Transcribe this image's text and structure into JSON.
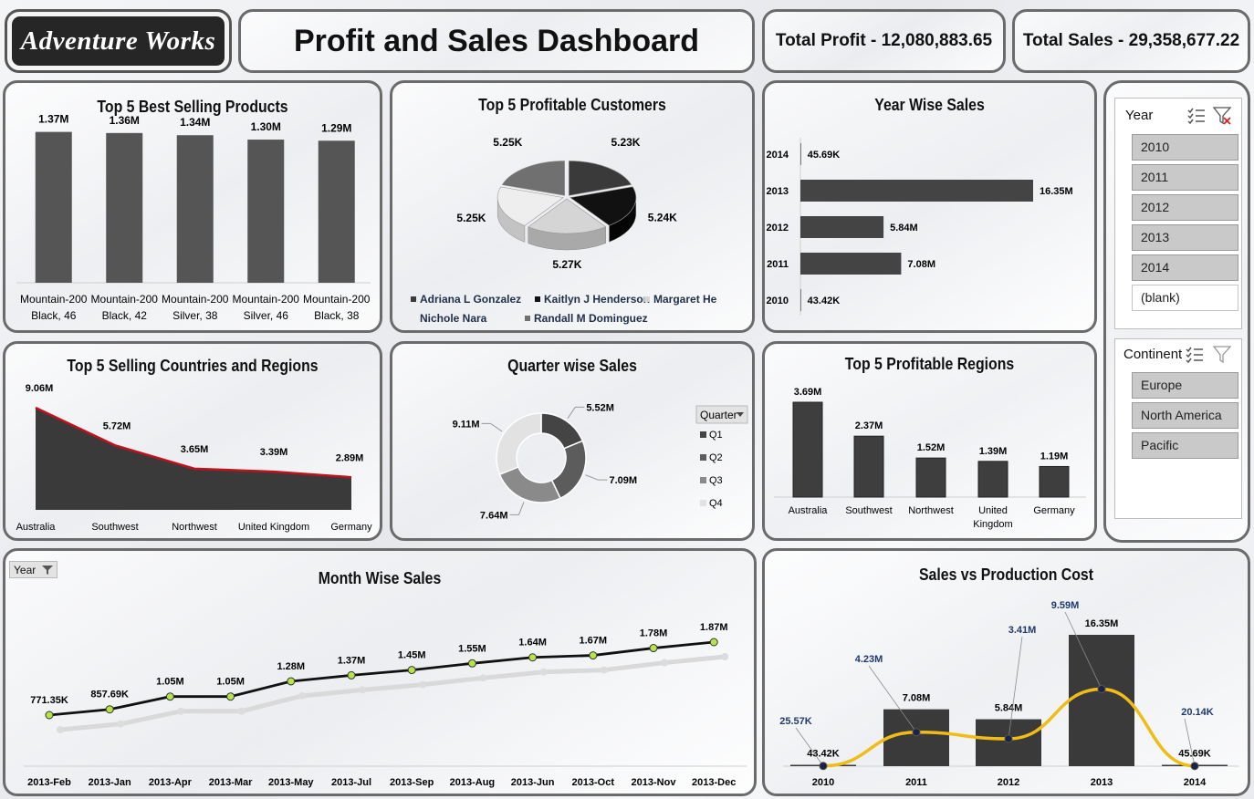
{
  "header": {
    "logo": "Adventure Works",
    "title": "Profit and Sales Dashboard",
    "total_profit": "Total Profit - 12,080,883.65",
    "total_sales": "Total Sales - 29,358,677.22"
  },
  "chart_data": [
    {
      "id": "products",
      "type": "bar",
      "title": "Top 5 Best Selling Products",
      "categories": [
        [
          "Mountain-200",
          "Black, 46"
        ],
        [
          "Mountain-200",
          "Black, 42"
        ],
        [
          "Mountain-200",
          "Silver, 38"
        ],
        [
          "Mountain-200",
          "Silver, 46"
        ],
        [
          "Mountain-200",
          "Black, 38"
        ]
      ],
      "values": [
        1.37,
        1.36,
        1.34,
        1.3,
        1.29
      ],
      "labels": [
        "1.37M",
        "1.36M",
        "1.34M",
        "1.30M",
        "1.29M"
      ],
      "ylim": [
        0,
        1.4
      ]
    },
    {
      "id": "customers",
      "type": "pie",
      "title": "Top 5 Profitable Customers",
      "names": [
        "Adriana L Gonzalez",
        "Kaitlyn J Henderson",
        "Margaret He",
        "Nichole Nara",
        "Randall M Dominguez"
      ],
      "values": [
        5.23,
        5.24,
        5.27,
        5.25,
        5.25
      ],
      "labels": [
        "5.23K",
        "5.24K",
        "5.27K",
        "5.25K",
        "5.25K"
      ],
      "colors": [
        "#3a3a3a",
        "#111111",
        "#d5d5d5",
        "#eeeeee",
        "#707070"
      ]
    },
    {
      "id": "yearsales",
      "type": "bar",
      "orientation": "horizontal",
      "title": "Year Wise Sales",
      "categories": [
        "2014",
        "2013",
        "2012",
        "2011",
        "2010"
      ],
      "values": [
        0.04569,
        16.35,
        5.84,
        7.08,
        0.04342
      ],
      "labels": [
        "45.69K",
        "16.35M",
        "5.84M",
        "7.08M",
        "43.42K"
      ],
      "xlim": [
        0,
        16.35
      ]
    },
    {
      "id": "countries",
      "type": "area",
      "title": "Top 5 Selling Countries and Regions",
      "categories": [
        "Australia",
        "Southwest",
        "Northwest",
        "United Kingdom",
        "Germany"
      ],
      "values": [
        9.06,
        5.72,
        3.65,
        3.39,
        2.89
      ],
      "labels": [
        "9.06M",
        "5.72M",
        "3.65M",
        "3.39M",
        "2.89M"
      ],
      "ylim": [
        0,
        9.5
      ]
    },
    {
      "id": "quarters",
      "type": "pie",
      "donut": true,
      "title": "Quarter wise Sales",
      "legend_title": "Quarter",
      "names": [
        "Q1",
        "Q2",
        "Q3",
        "Q4"
      ],
      "values": [
        5.52,
        7.09,
        7.64,
        9.11
      ],
      "labels": [
        "5.52M",
        "7.09M",
        "7.64M",
        "9.11M"
      ],
      "colors": [
        "#444444",
        "#5c5c5c",
        "#8a8a8a",
        "#e2e2e2"
      ]
    },
    {
      "id": "regions",
      "type": "bar",
      "title": "Top 5 Profitable Regions",
      "categories": [
        [
          "Australia"
        ],
        [
          "Southwest"
        ],
        [
          "Northwest"
        ],
        [
          "United",
          "Kingdom"
        ],
        [
          "Germany"
        ]
      ],
      "values": [
        3.69,
        2.37,
        1.52,
        1.39,
        1.19
      ],
      "labels": [
        "3.69M",
        "2.37M",
        "1.52M",
        "1.39M",
        "1.19M"
      ],
      "ylim": [
        0,
        3.69
      ]
    },
    {
      "id": "months",
      "type": "line",
      "title": "Month Wise Sales",
      "filter_label": "Year",
      "categories": [
        "2013-Feb",
        "2013-Jan",
        "2013-Apr",
        "2013-Mar",
        "2013-May",
        "2013-Jul",
        "2013-Sep",
        "2013-Aug",
        "2013-Jun",
        "2013-Oct",
        "2013-Nov",
        "2013-Dec"
      ],
      "values": [
        0.77135,
        0.85769,
        1.05,
        1.05,
        1.28,
        1.37,
        1.45,
        1.55,
        1.64,
        1.67,
        1.78,
        1.87
      ],
      "labels": [
        "771.35K",
        "857.69K",
        "1.05M",
        "1.05M",
        "1.28M",
        "1.37M",
        "1.45M",
        "1.55M",
        "1.64M",
        "1.67M",
        "1.78M",
        "1.87M"
      ],
      "ylim": [
        0,
        2.2
      ]
    },
    {
      "id": "salescost",
      "type": "bar",
      "title": "Sales vs Production Cost",
      "categories": [
        "2010",
        "2011",
        "2012",
        "2013",
        "2014"
      ],
      "series": [
        {
          "values": [
            0.04342,
            7.08,
            5.84,
            16.35,
            0.04569
          ],
          "labels": [
            "43.42K",
            "7.08M",
            "5.84M",
            "16.35M",
            "45.69K"
          ]
        },
        {
          "values": [
            0.02557,
            4.23,
            3.41,
            9.59,
            0.02014
          ],
          "labels": [
            "25.57K",
            "4.23M",
            "3.41M",
            "9.59M",
            "20.14K"
          ]
        }
      ],
      "ylim": [
        0,
        16.35
      ]
    }
  ],
  "slicers": {
    "year": {
      "title": "Year",
      "items": [
        "2010",
        "2011",
        "2012",
        "2013",
        "2014",
        "(blank)"
      ]
    },
    "continent": {
      "title": "Continent",
      "items": [
        "Europe",
        "North America",
        "Pacific"
      ]
    }
  }
}
